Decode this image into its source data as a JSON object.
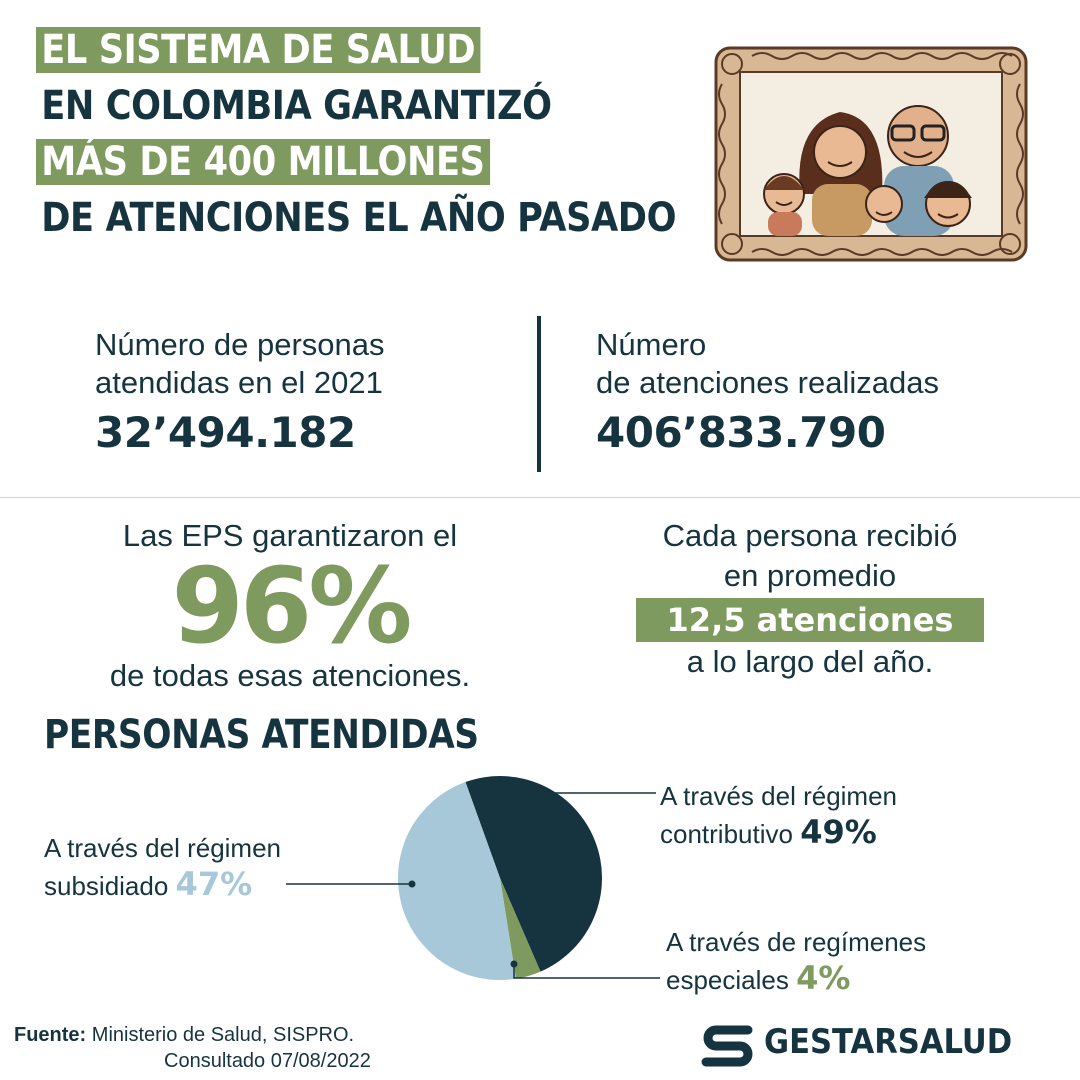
{
  "headline": {
    "line1": "EL SISTEMA DE SALUD",
    "line2": "EN COLOMBIA GARANTIZÓ",
    "line3": "MÁS DE 400 MILLONES",
    "line4": "DE ATENCIONES EL AÑO PASADO"
  },
  "illustration": {
    "icon": "family-portrait-frame"
  },
  "stats": {
    "people": {
      "label_line1": "Número de personas",
      "label_line2": "atendidas en el 2021",
      "value": "32’494.182"
    },
    "attentions": {
      "label_line1": "Número",
      "label_line2": "de atenciones realizadas",
      "value": "406’833.790"
    }
  },
  "eps": {
    "before": "Las EPS garantizaron el",
    "percent": "96%",
    "after": "de todas esas atenciones."
  },
  "average": {
    "line1": "Cada persona recibió",
    "line2": "en promedio",
    "badge": "12,5 atenciones",
    "line3": "a lo largo del año."
  },
  "section_title": "PERSONAS ATENDIDAS",
  "chart_data": {
    "type": "pie",
    "slices": [
      {
        "label_line1": "A través del régimen",
        "label_line2": "contributivo",
        "value": 49,
        "value_text": "49%",
        "color": "#16343f"
      },
      {
        "label_line1": "A través de regímenes",
        "label_line2": "especiales",
        "value": 4,
        "value_text": "4%",
        "color": "#7f9a5f"
      },
      {
        "label_line1": "A través del régimen",
        "label_line2": "subsidiado",
        "value": 47,
        "value_text": "47%",
        "color": "#a7c8d9"
      }
    ]
  },
  "footer": {
    "source_label": "Fuente:",
    "source_text": "Ministerio de Salud, SISPRO.",
    "consulted": "Consultado 07/08/2022",
    "logo_text": "GESTARSALUD",
    "logo_icon": "gestarsalud-logo-icon"
  },
  "colors": {
    "navy": "#16343f",
    "green": "#7f9a5f",
    "lightblue": "#a7c8d9"
  }
}
